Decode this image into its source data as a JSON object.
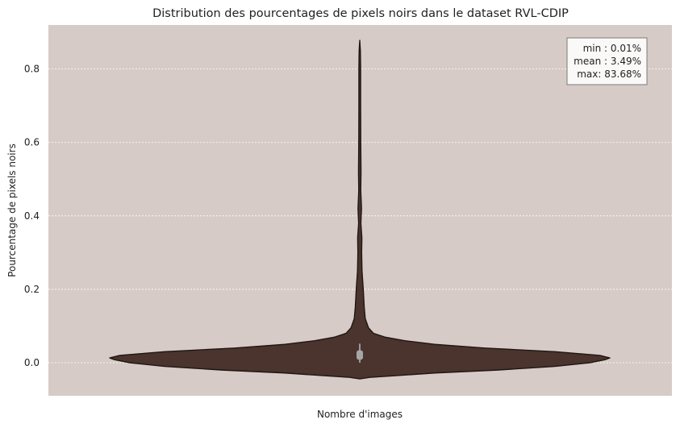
{
  "chart_data": {
    "type": "violin",
    "title": "Distribution des pourcentages de pixels noirs dans le dataset RVL-CDIP",
    "xlabel": "Nombre d'images",
    "ylabel": "Pourcentage de pixels noirs",
    "ylim": [
      -0.09,
      0.92
    ],
    "yticks": [
      0.0,
      0.2,
      0.4,
      0.6,
      0.8
    ],
    "ytick_labels": [
      "0.0",
      "0.2",
      "0.4",
      "0.6",
      "0.8"
    ],
    "grid": "horizontal dotted",
    "background_color": "#d7cbc7",
    "violin_color": "#4a342d",
    "outline_color": "#1f1715",
    "density_profile": [
      {
        "y": -0.044,
        "w": 0.0
      },
      {
        "y": -0.04,
        "w": 0.04
      },
      {
        "y": -0.035,
        "w": 0.15
      },
      {
        "y": -0.028,
        "w": 0.3
      },
      {
        "y": -0.02,
        "w": 0.55
      },
      {
        "y": -0.01,
        "w": 0.78
      },
      {
        "y": 0.0,
        "w": 0.92
      },
      {
        "y": 0.008,
        "w": 0.98
      },
      {
        "y": 0.013,
        "w": 1.0
      },
      {
        "y": 0.02,
        "w": 0.96
      },
      {
        "y": 0.03,
        "w": 0.78
      },
      {
        "y": 0.04,
        "w": 0.5
      },
      {
        "y": 0.05,
        "w": 0.3
      },
      {
        "y": 0.06,
        "w": 0.18
      },
      {
        "y": 0.07,
        "w": 0.1
      },
      {
        "y": 0.08,
        "w": 0.055
      },
      {
        "y": 0.095,
        "w": 0.035
      },
      {
        "y": 0.12,
        "w": 0.022
      },
      {
        "y": 0.15,
        "w": 0.018
      },
      {
        "y": 0.2,
        "w": 0.014
      },
      {
        "y": 0.25,
        "w": 0.009
      },
      {
        "y": 0.3,
        "w": 0.0075
      },
      {
        "y": 0.34,
        "w": 0.0085
      },
      {
        "y": 0.38,
        "w": 0.0045
      },
      {
        "y": 0.42,
        "w": 0.007
      },
      {
        "y": 0.47,
        "w": 0.004
      },
      {
        "y": 0.52,
        "w": 0.005
      },
      {
        "y": 0.6,
        "w": 0.004
      },
      {
        "y": 0.7,
        "w": 0.0035
      },
      {
        "y": 0.8,
        "w": 0.0035
      },
      {
        "y": 0.85,
        "w": 0.0025
      },
      {
        "y": 0.878,
        "w": 0.0
      }
    ],
    "box": {
      "q1": 0.008,
      "q3": 0.034,
      "whisker_low": 0.0001,
      "whisker_high": 0.052
    },
    "stats_box": {
      "lines": [
        "min : 0.01%",
        "mean : 3.49%",
        "max: 83.68%"
      ]
    }
  }
}
